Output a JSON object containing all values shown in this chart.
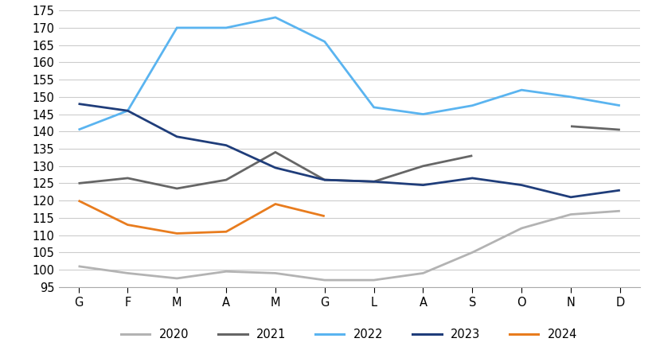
{
  "months": [
    "G",
    "F",
    "M",
    "A",
    "M",
    "G",
    "L",
    "A",
    "S",
    "O",
    "N",
    "D"
  ],
  "series": {
    "2020": [
      101,
      99,
      97.5,
      99.5,
      99,
      97,
      97,
      99,
      105,
      112,
      116,
      117
    ],
    "2021": [
      125,
      126.5,
      123.5,
      126,
      134,
      126,
      125.5,
      130,
      133,
      null,
      141.5,
      140.5
    ],
    "2022": [
      140.5,
      146,
      170,
      170,
      173,
      166,
      147,
      145,
      147.5,
      152,
      150,
      147.5
    ],
    "2023": [
      148,
      146,
      138.5,
      136,
      129.5,
      126,
      125.5,
      124.5,
      126.5,
      124.5,
      121,
      123
    ],
    "2024": [
      120,
      113,
      110.5,
      111,
      119,
      115.5,
      null,
      null,
      null,
      null,
      null,
      null
    ]
  },
  "colors": {
    "2020": "#b3b3b3",
    "2021": "#666666",
    "2022": "#5ab4f0",
    "2023": "#1f3d7a",
    "2024": "#e87c1e"
  },
  "ylim": [
    95,
    175
  ],
  "yticks": [
    95,
    100,
    105,
    110,
    115,
    120,
    125,
    130,
    135,
    140,
    145,
    150,
    155,
    160,
    165,
    170,
    175
  ],
  "background_color": "#ffffff",
  "grid_color": "#cccccc",
  "linewidth": 2.0,
  "legend_labels": [
    "2020",
    "2021",
    "2022",
    "2023",
    "2024"
  ]
}
